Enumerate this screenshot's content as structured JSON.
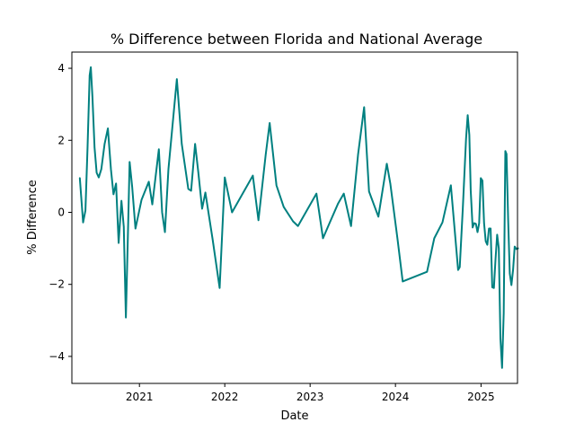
{
  "chart_data": {
    "type": "line",
    "title": "% Difference between Florida and National Average",
    "xlabel": "Date",
    "ylabel": "% Difference",
    "x_ticks": [
      {
        "date": "2021-01-01",
        "label": "2021"
      },
      {
        "date": "2022-01-01",
        "label": "2022"
      },
      {
        "date": "2023-01-01",
        "label": "2023"
      },
      {
        "date": "2024-01-01",
        "label": "2024"
      },
      {
        "date": "2025-01-01",
        "label": "2025"
      }
    ],
    "y_ticks": [
      {
        "value": -4,
        "label": "−4"
      },
      {
        "value": -2,
        "label": "−2"
      },
      {
        "value": 0,
        "label": "0"
      },
      {
        "value": 2,
        "label": "2"
      },
      {
        "value": 4,
        "label": "4"
      }
    ],
    "xlim": [
      "2020-03-18",
      "2025-06-06"
    ],
    "ylim": [
      -4.75,
      4.45
    ],
    "grid": false,
    "series": [
      {
        "color": "#008080",
        "points": [
          [
            "2020-04-21",
            0.95
          ],
          [
            "2020-05-05",
            -0.28
          ],
          [
            "2020-05-15",
            0.05
          ],
          [
            "2020-05-24",
            1.8
          ],
          [
            "2020-06-02",
            3.8
          ],
          [
            "2020-06-07",
            4.03
          ],
          [
            "2020-06-14",
            3.2
          ],
          [
            "2020-06-23",
            1.8
          ],
          [
            "2020-07-02",
            1.1
          ],
          [
            "2020-07-11",
            0.97
          ],
          [
            "2020-07-22",
            1.2
          ],
          [
            "2020-08-05",
            1.9
          ],
          [
            "2020-08-19",
            2.33
          ],
          [
            "2020-09-01",
            1.2
          ],
          [
            "2020-09-12",
            0.5
          ],
          [
            "2020-09-23",
            0.8
          ],
          [
            "2020-10-04",
            -0.85
          ],
          [
            "2020-10-16",
            0.32
          ],
          [
            "2020-10-26",
            -0.4
          ],
          [
            "2020-11-04",
            -2.92
          ],
          [
            "2020-11-12",
            -0.8
          ],
          [
            "2020-11-20",
            1.4
          ],
          [
            "2020-12-01",
            0.7
          ],
          [
            "2020-12-15",
            -0.45
          ],
          [
            "2021-01-10",
            0.35
          ],
          [
            "2021-02-10",
            0.85
          ],
          [
            "2021-02-25",
            0.22
          ],
          [
            "2021-03-25",
            1.75
          ],
          [
            "2021-04-08",
            0.0
          ],
          [
            "2021-04-20",
            -0.55
          ],
          [
            "2021-05-05",
            1.2
          ],
          [
            "2021-06-10",
            3.7
          ],
          [
            "2021-07-01",
            1.9
          ],
          [
            "2021-07-29",
            0.65
          ],
          [
            "2021-08-10",
            0.6
          ],
          [
            "2021-08-27",
            1.9
          ],
          [
            "2021-09-10",
            1.1
          ],
          [
            "2021-09-26",
            0.1
          ],
          [
            "2021-10-10",
            0.55
          ],
          [
            "2021-11-10",
            -0.75
          ],
          [
            "2021-12-10",
            -2.1
          ],
          [
            "2022-01-01",
            0.97
          ],
          [
            "2022-02-01",
            0.0
          ],
          [
            "2022-05-01",
            1.02
          ],
          [
            "2022-05-25",
            -0.22
          ],
          [
            "2022-06-25",
            1.6
          ],
          [
            "2022-07-12",
            2.48
          ],
          [
            "2022-08-10",
            0.75
          ],
          [
            "2022-09-10",
            0.15
          ],
          [
            "2022-10-20",
            -0.25
          ],
          [
            "2022-11-10",
            -0.38
          ],
          [
            "2023-01-28",
            0.52
          ],
          [
            "2023-02-25",
            -0.72
          ],
          [
            "2023-03-25",
            -0.3
          ],
          [
            "2023-05-01",
            0.25
          ],
          [
            "2023-05-25",
            0.52
          ],
          [
            "2023-06-25",
            -0.38
          ],
          [
            "2023-07-25",
            1.6
          ],
          [
            "2023-08-20",
            2.92
          ],
          [
            "2023-09-10",
            0.58
          ],
          [
            "2023-10-20",
            -0.12
          ],
          [
            "2023-11-25",
            1.35
          ],
          [
            "2023-12-10",
            0.8
          ],
          [
            "2024-01-10",
            -0.75
          ],
          [
            "2024-02-01",
            -1.92
          ],
          [
            "2024-05-15",
            -1.65
          ],
          [
            "2024-06-15",
            -0.72
          ],
          [
            "2024-07-20",
            -0.28
          ],
          [
            "2024-08-25",
            0.75
          ],
          [
            "2024-09-25",
            -1.6
          ],
          [
            "2024-10-02",
            -1.52
          ],
          [
            "2024-10-15",
            0.1
          ],
          [
            "2024-10-29",
            2.05
          ],
          [
            "2024-11-05",
            2.7
          ],
          [
            "2024-11-12",
            2.15
          ],
          [
            "2024-11-18",
            0.6
          ],
          [
            "2024-11-26",
            -0.42
          ],
          [
            "2024-12-03",
            -0.3
          ],
          [
            "2024-12-10",
            -0.32
          ],
          [
            "2024-12-17",
            -0.55
          ],
          [
            "2024-12-24",
            -0.3
          ],
          [
            "2024-12-31",
            0.95
          ],
          [
            "2025-01-07",
            0.88
          ],
          [
            "2025-01-14",
            -0.3
          ],
          [
            "2025-01-21",
            -0.8
          ],
          [
            "2025-01-28",
            -0.9
          ],
          [
            "2025-02-04",
            -0.45
          ],
          [
            "2025-02-11",
            -0.45
          ],
          [
            "2025-02-18",
            -2.08
          ],
          [
            "2025-02-25",
            -2.1
          ],
          [
            "2025-03-04",
            -1.3
          ],
          [
            "2025-03-11",
            -0.62
          ],
          [
            "2025-03-18",
            -1.0
          ],
          [
            "2025-03-25",
            -3.5
          ],
          [
            "2025-04-01",
            -4.32
          ],
          [
            "2025-04-08",
            -2.8
          ],
          [
            "2025-04-15",
            1.7
          ],
          [
            "2025-04-20",
            1.62
          ],
          [
            "2025-04-27",
            -0.2
          ],
          [
            "2025-05-04",
            -1.7
          ],
          [
            "2025-05-11",
            -2.02
          ],
          [
            "2025-05-18",
            -1.6
          ],
          [
            "2025-05-25",
            -0.95
          ],
          [
            "2025-06-01",
            -1.02
          ],
          [
            "2025-06-08",
            -1.0
          ]
        ]
      }
    ]
  }
}
